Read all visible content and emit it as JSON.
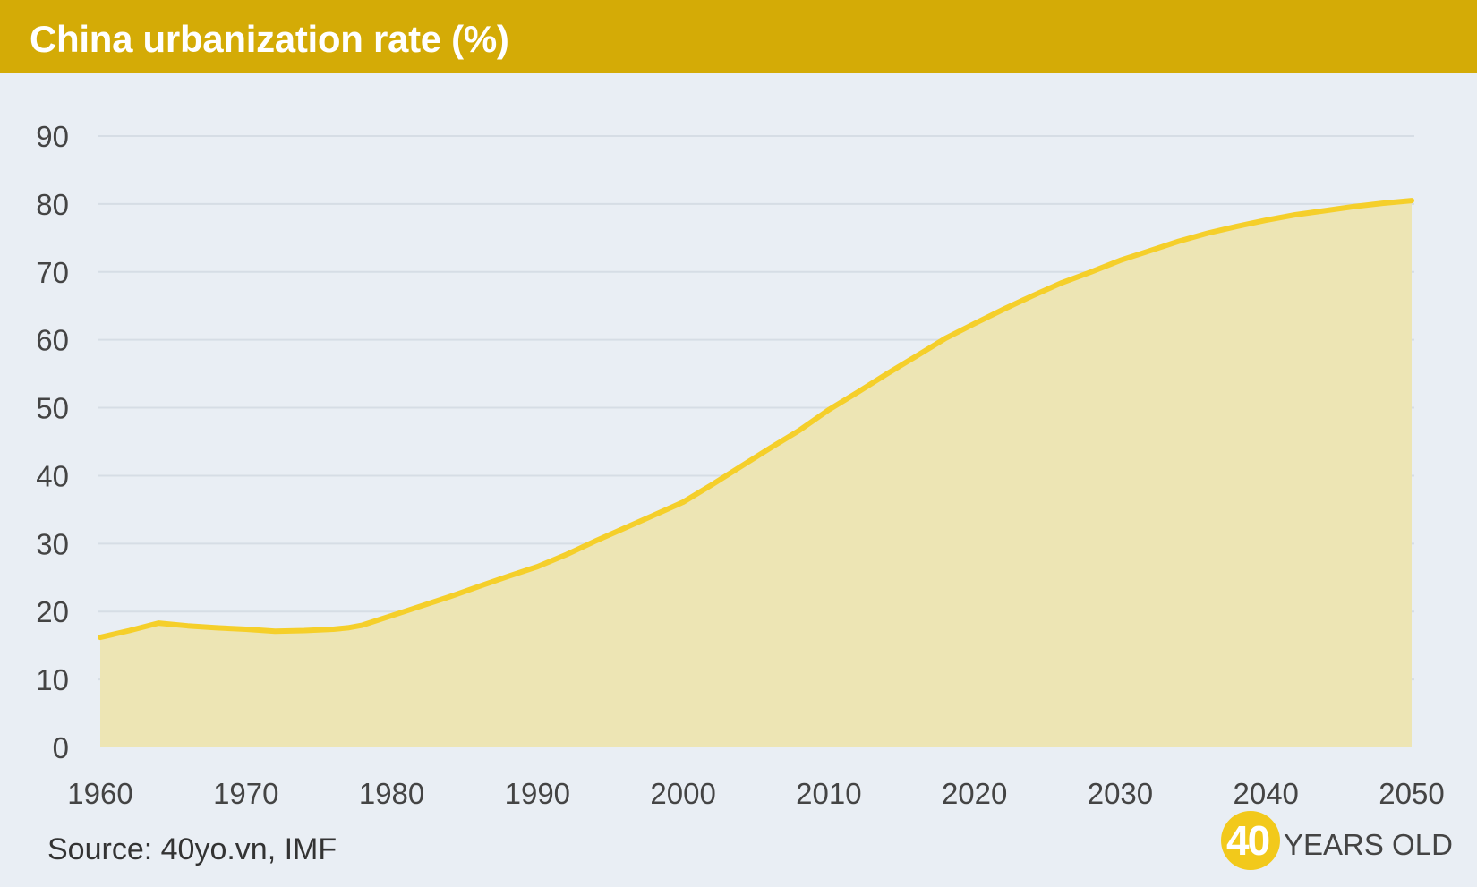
{
  "header": {
    "title": "China urbanization rate (%)"
  },
  "source": "Source: 40yo.vn, IMF",
  "logo": {
    "number": "40",
    "text": "YEARS OLD"
  },
  "colors": {
    "header_bg": "#d4ab06",
    "line": "#f5cf2a",
    "fill": "#ede5b4",
    "background": "#e9eef4"
  },
  "chart_data": {
    "type": "area",
    "title": "China urbanization rate (%)",
    "xlabel": "",
    "ylabel": "",
    "xlim": [
      1960,
      2050
    ],
    "ylim": [
      0,
      90
    ],
    "x_ticks": [
      1960,
      1970,
      1980,
      1990,
      2000,
      2010,
      2020,
      2030,
      2040,
      2050
    ],
    "y_ticks": [
      0,
      10,
      20,
      30,
      40,
      50,
      60,
      70,
      80,
      90
    ],
    "grid": true,
    "legend": "none",
    "series": [
      {
        "x": [
          1960,
          1962,
          1964,
          1966,
          1968,
          1970,
          1972,
          1974,
          1976,
          1977,
          1978,
          1980,
          1982,
          1984,
          1986,
          1988,
          1990,
          1992,
          1994,
          1996,
          1998,
          2000,
          2002,
          2004,
          2006,
          2008,
          2010,
          2012,
          2014,
          2016,
          2018,
          2020,
          2022,
          2024,
          2026,
          2028,
          2030,
          2032,
          2034,
          2036,
          2038,
          2040,
          2042,
          2044,
          2046,
          2048,
          2050
        ],
        "values": [
          16.2,
          17.2,
          18.3,
          17.9,
          17.6,
          17.4,
          17.1,
          17.2,
          17.4,
          17.6,
          18.0,
          19.4,
          20.8,
          22.2,
          23.7,
          25.2,
          26.6,
          28.4,
          30.4,
          32.3,
          34.2,
          36.1,
          38.7,
          41.4,
          44.1,
          46.7,
          49.7,
          52.3,
          55.0,
          57.6,
          60.2,
          62.4,
          64.5,
          66.5,
          68.4,
          70.0,
          71.7,
          73.1,
          74.5,
          75.7,
          76.7,
          77.6,
          78.4,
          79.0,
          79.6,
          80.1,
          80.5
        ]
      }
    ]
  }
}
